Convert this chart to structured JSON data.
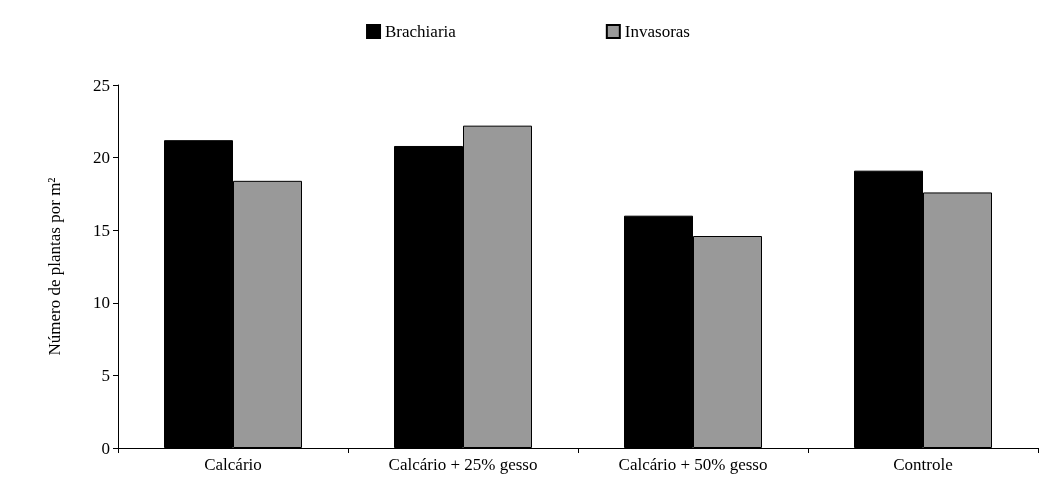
{
  "chart_data": {
    "type": "bar",
    "ylabel": "Número de plantas por m²",
    "categories": [
      "Calcário",
      "Calcário + 25% gesso",
      "Calcário + 50% gesso",
      "Controle"
    ],
    "series": [
      {
        "name": "Brachiaria",
        "color": "#000000",
        "values": [
          21.2,
          20.8,
          16.0,
          19.1
        ]
      },
      {
        "name": "Invasoras",
        "color": "#999999",
        "values": [
          18.4,
          22.2,
          14.6,
          17.6
        ]
      }
    ],
    "ylim": [
      0,
      25
    ],
    "yticks": [
      0,
      5,
      10,
      15,
      20,
      25
    ],
    "grid": false,
    "legend": "top"
  }
}
